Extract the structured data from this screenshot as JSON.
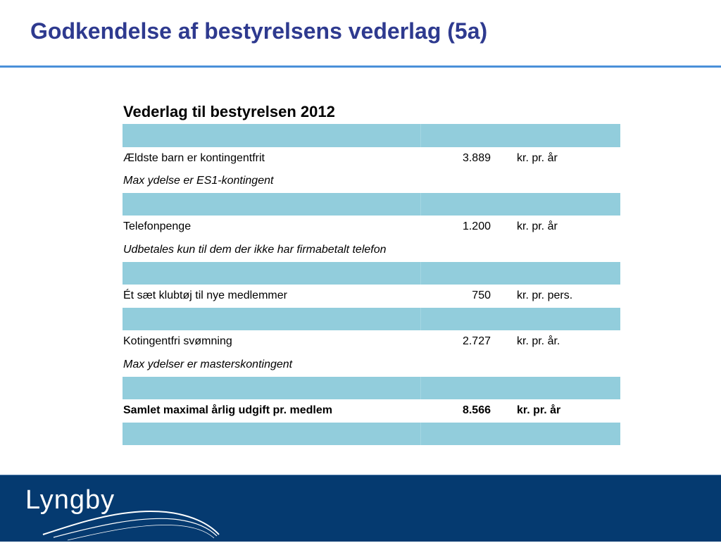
{
  "slide": {
    "title": "Godkendelse af bestyrelsens vederlag (5a)"
  },
  "table": {
    "heading": "Vederlag til bestyrelsen 2012",
    "rows": [
      {
        "type": "band"
      },
      {
        "type": "item",
        "label": "Ældste barn er kontingentfrit",
        "value": "3.889",
        "unit": "kr. pr. år"
      },
      {
        "type": "note",
        "label": "Max ydelse er ES1-kontingent"
      },
      {
        "type": "band"
      },
      {
        "type": "item",
        "label": "Telefonpenge",
        "value": "1.200",
        "unit": "kr. pr. år"
      },
      {
        "type": "note",
        "label": "Udbetales kun til dem der ikke har firmabetalt telefon"
      },
      {
        "type": "band"
      },
      {
        "type": "item",
        "label": "Ét sæt klubtøj til nye medlemmer",
        "value": "750",
        "unit": "kr. pr. pers."
      },
      {
        "type": "band"
      },
      {
        "type": "item",
        "label": "Kotingentfri svømning",
        "value": "2.727",
        "unit": "kr. pr. år."
      },
      {
        "type": "note",
        "label": "Max ydelser er masterskontingent"
      },
      {
        "type": "band"
      },
      {
        "type": "total",
        "label": "Samlet maximal årlig udgift pr. medlem",
        "value": "8.566",
        "unit": "kr. pr. år"
      },
      {
        "type": "band"
      }
    ]
  },
  "footer": {
    "logo_text": "Lyngby",
    "background_color": "#053a70"
  },
  "colors": {
    "title": "#2e3a8f",
    "rule": "#4a90d9",
    "band": "#92cddc"
  }
}
